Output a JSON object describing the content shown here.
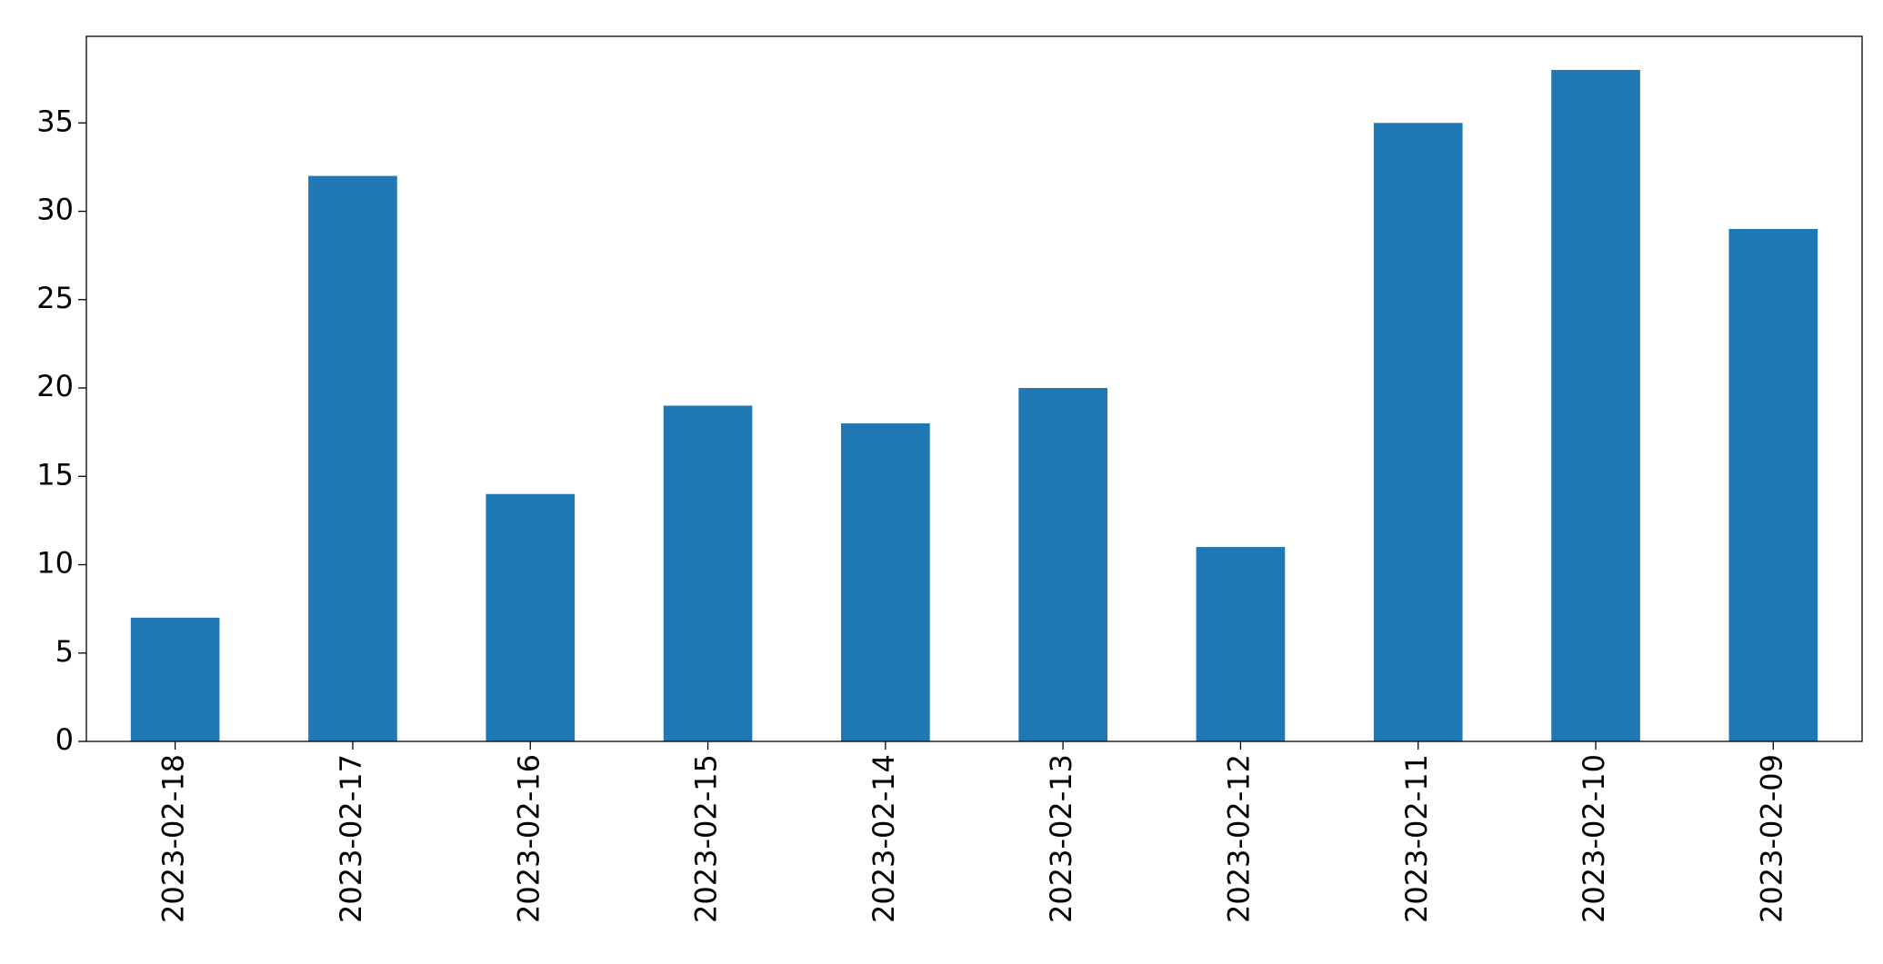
{
  "chart_data": {
    "type": "bar",
    "categories": [
      "2023-02-18",
      "2023-02-17",
      "2023-02-16",
      "2023-02-15",
      "2023-02-14",
      "2023-02-13",
      "2023-02-12",
      "2023-02-11",
      "2023-02-10",
      "2023-02-09"
    ],
    "values": [
      7,
      32,
      14,
      19,
      18,
      20,
      11,
      35,
      38,
      29
    ],
    "color": "#1f77b4",
    "ylim": [
      0,
      39.9
    ],
    "yticks": [
      0,
      5,
      10,
      15,
      20,
      25,
      30,
      35
    ],
    "grid": false
  }
}
